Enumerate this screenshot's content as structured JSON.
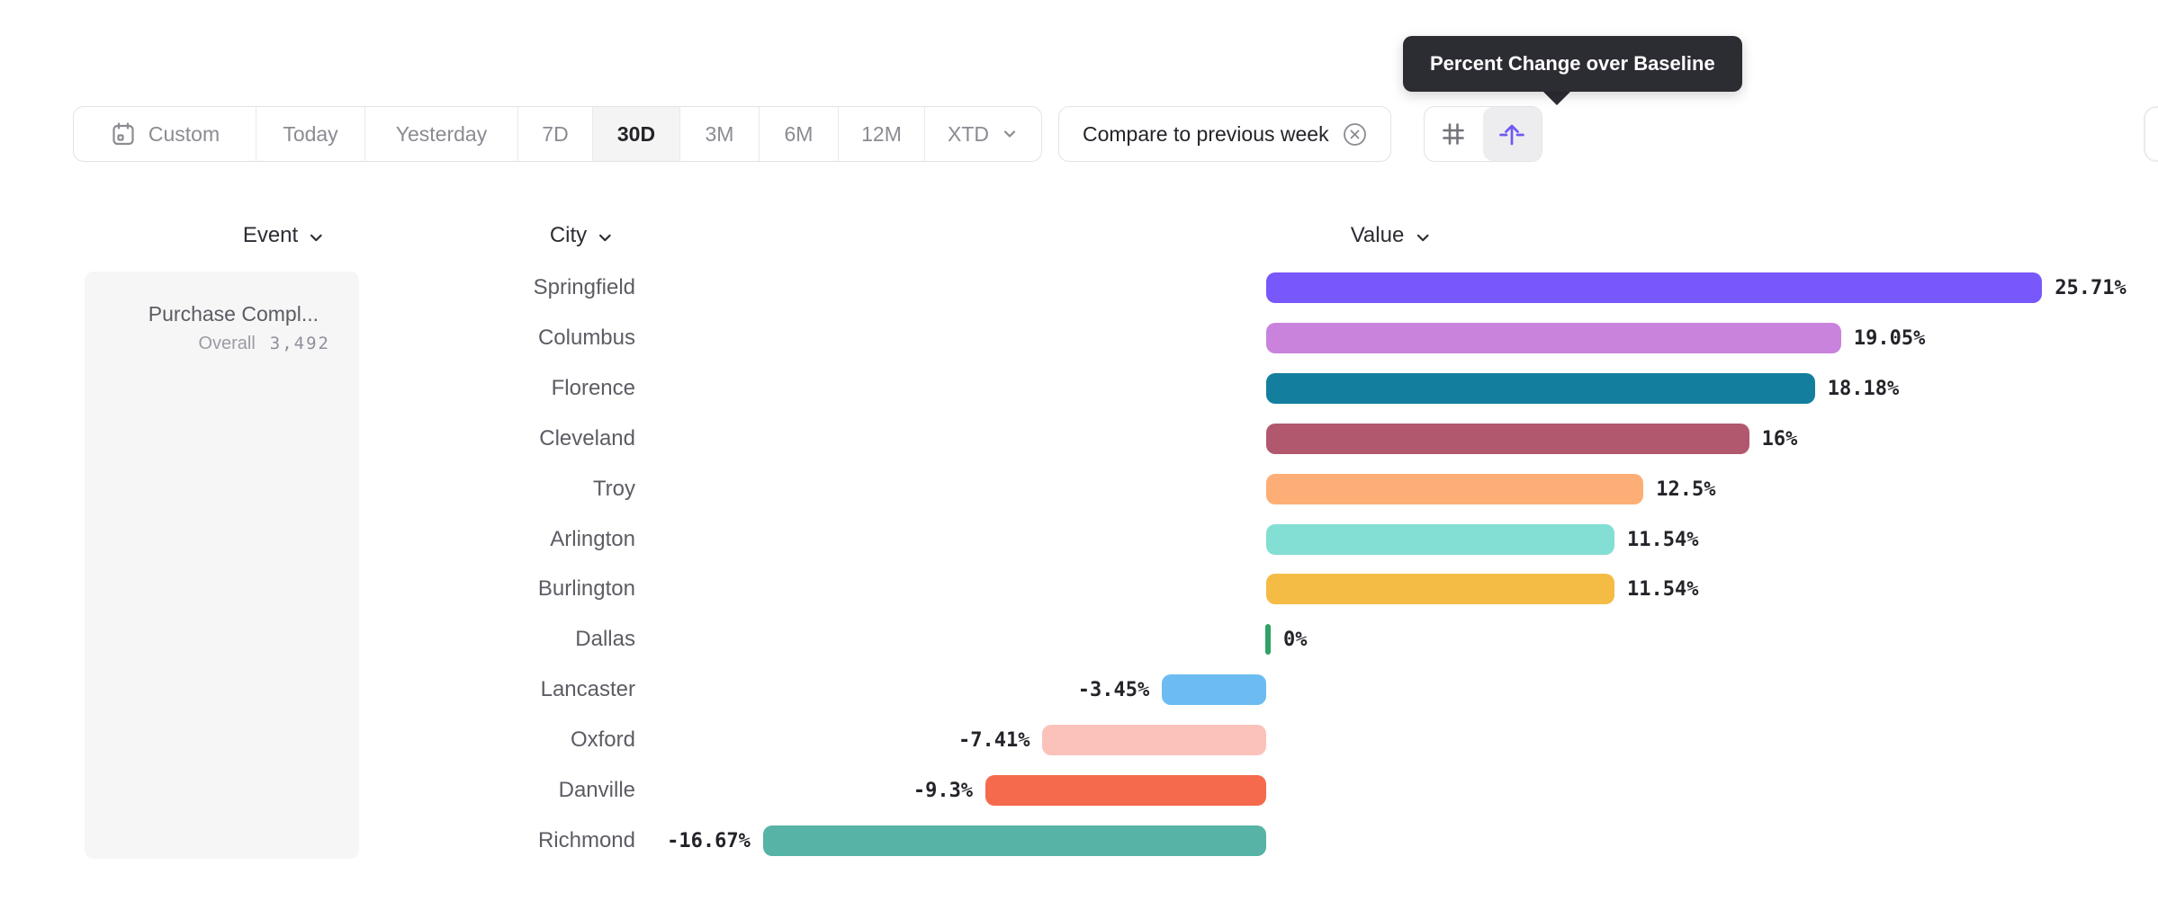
{
  "tooltip": {
    "text": "Percent Change over Baseline"
  },
  "toolbar": {
    "date_ranges": [
      {
        "label": "Custom",
        "selected": false,
        "icon": "calendar-icon"
      },
      {
        "label": "Today",
        "selected": false
      },
      {
        "label": "Yesterday",
        "selected": false
      },
      {
        "label": "7D",
        "selected": false
      },
      {
        "label": "30D",
        "selected": true
      },
      {
        "label": "3M",
        "selected": false
      },
      {
        "label": "6M",
        "selected": false
      },
      {
        "label": "12M",
        "selected": false
      },
      {
        "label": "XTD",
        "selected": false,
        "icon": "chevron-down-icon"
      }
    ],
    "compare_chip": {
      "label": "Compare to previous week",
      "icon": "close-circle-icon"
    },
    "view_toggle": {
      "options": [
        {
          "name": "absolute-numbers",
          "icon": "hash-icon",
          "selected": false
        },
        {
          "name": "percent-change-over-baseline",
          "icon": "baseline-arrow-icon",
          "selected": true
        }
      ]
    }
  },
  "columns": {
    "event": "Event",
    "city": "City",
    "value": "Value"
  },
  "event_panel": {
    "title": "Purchase Compl...",
    "overall_label": "Overall",
    "overall_value": "3,492"
  },
  "chart_data": {
    "type": "bar",
    "orientation": "horizontal",
    "value_unit": "percent_change_over_baseline",
    "categories": [
      "Springfield",
      "Columbus",
      "Florence",
      "Cleveland",
      "Troy",
      "Arlington",
      "Burlington",
      "Dallas",
      "Lancaster",
      "Oxford",
      "Danville",
      "Richmond"
    ],
    "values": [
      25.71,
      19.05,
      18.18,
      16,
      12.5,
      11.54,
      11.54,
      0,
      -3.45,
      -7.41,
      -9.3,
      -16.67
    ],
    "labels": [
      "25.71%",
      "19.05%",
      "18.18%",
      "16%",
      "12.5%",
      "11.54%",
      "11.54%",
      "0%",
      "-3.45%",
      "-7.41%",
      "-9.3%",
      "-16.67%"
    ],
    "colors": [
      "#7857fb",
      "#c983dc",
      "#137e9d",
      "#b2586e",
      "#fdae76",
      "#83ded3",
      "#f4bb45",
      "#2fa266",
      "#6cbcf2",
      "#fbc2bb",
      "#f56a4c",
      "#56b3a5"
    ],
    "xlim": [
      -16.67,
      25.71
    ],
    "baseline": 0,
    "grid": false,
    "legend": false
  },
  "accent_colors": {
    "primary_purple": "#6f58f3",
    "tooltip_bg": "#2c2c33",
    "panel_bg": "#f6f6f7"
  }
}
